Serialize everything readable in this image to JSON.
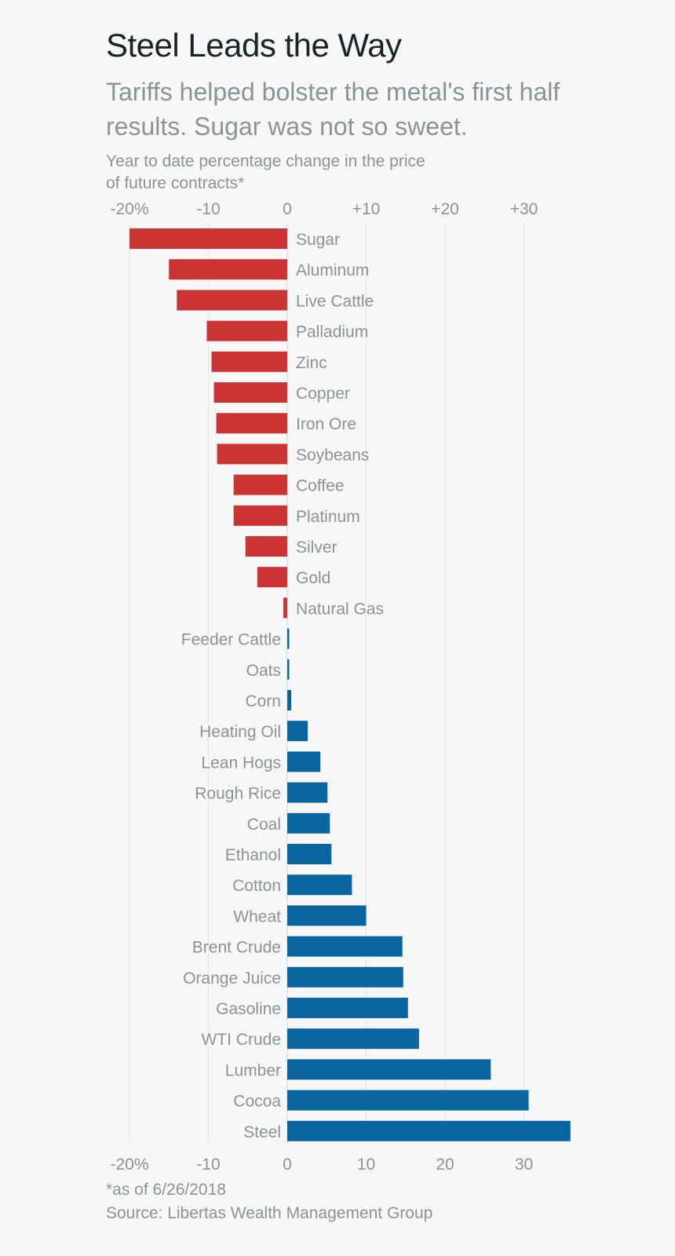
{
  "title": "Steel Leads the Way",
  "subtitle": "Tariffs helped bolster the metal's first half results. Sugar was not so sweet.",
  "footnote": "*as of 6/26/2018",
  "source": "Source: Libertas Wealth Management Group",
  "colors": {
    "negative": "#cc3333",
    "positive": "#0a649d",
    "gridline": "#e4e4e4",
    "text": "#8a9398"
  },
  "chart_data": {
    "type": "bar",
    "orientation": "horizontal",
    "ylabel": "Year to date percentage change in the price of  future contracts*",
    "xlim": [
      -20,
      36
    ],
    "top_ticks": [
      {
        "value": -20,
        "label": "-20%"
      },
      {
        "value": -10,
        "label": "-10"
      },
      {
        "value": 0,
        "label": "0"
      },
      {
        "value": 10,
        "label": "+10"
      },
      {
        "value": 20,
        "label": "+20"
      },
      {
        "value": 30,
        "label": "+30"
      }
    ],
    "bottom_ticks": [
      {
        "value": -20,
        "label": "-20%"
      },
      {
        "value": -10,
        "label": "-10"
      },
      {
        "value": 0,
        "label": "0"
      },
      {
        "value": 10,
        "label": "10"
      },
      {
        "value": 20,
        "label": "20"
      },
      {
        "value": 30,
        "label": "30"
      }
    ],
    "grid": true,
    "categories": [
      "Sugar",
      "Aluminum",
      "Live Cattle",
      "Palladium",
      "Zinc",
      "Copper",
      "Iron Ore",
      "Soybeans",
      "Coffee",
      "Platinum",
      "Silver",
      "Gold",
      "Natural Gas",
      "Feeder Cattle",
      "Oats",
      "Corn",
      "Heating Oil",
      "Lean Hogs",
      "Rough Rice",
      "Coal",
      "Ethanol",
      "Cotton",
      "Wheat",
      "Brent Crude",
      "Orange Juice",
      "Gasoline",
      "WTI Crude",
      "Lumber",
      "Cocoa",
      "Steel"
    ],
    "values": [
      -20.0,
      -15.0,
      -14.0,
      -10.2,
      -9.6,
      -9.3,
      -9.0,
      -8.9,
      -6.8,
      -6.8,
      -5.3,
      -3.8,
      -0.5,
      0.2,
      0.2,
      0.5,
      2.6,
      4.2,
      5.1,
      5.4,
      5.6,
      8.2,
      10.0,
      14.6,
      14.7,
      15.3,
      16.7,
      25.8,
      30.6,
      35.9
    ]
  }
}
